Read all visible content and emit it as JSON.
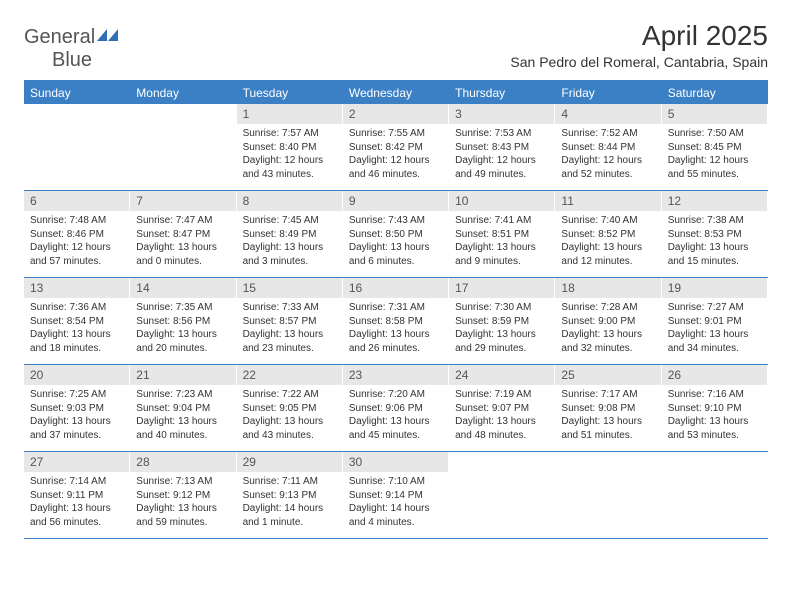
{
  "logo": {
    "text1": "General",
    "text2": "Blue"
  },
  "title": "April 2025",
  "location": "San Pedro del Romeral, Cantabria, Spain",
  "colors": {
    "header_bg": "#3b7fc4",
    "header_text": "#ffffff",
    "daynum_bg": "#e7e7e7",
    "text": "#333333",
    "border": "#3b7fc4"
  },
  "daysOfWeek": [
    "Sunday",
    "Monday",
    "Tuesday",
    "Wednesday",
    "Thursday",
    "Friday",
    "Saturday"
  ],
  "weeks": [
    [
      {
        "empty": true
      },
      {
        "empty": true
      },
      {
        "n": "1",
        "sr": "7:57 AM",
        "ss": "8:40 PM",
        "dl": "12 hours and 43 minutes."
      },
      {
        "n": "2",
        "sr": "7:55 AM",
        "ss": "8:42 PM",
        "dl": "12 hours and 46 minutes."
      },
      {
        "n": "3",
        "sr": "7:53 AM",
        "ss": "8:43 PM",
        "dl": "12 hours and 49 minutes."
      },
      {
        "n": "4",
        "sr": "7:52 AM",
        "ss": "8:44 PM",
        "dl": "12 hours and 52 minutes."
      },
      {
        "n": "5",
        "sr": "7:50 AM",
        "ss": "8:45 PM",
        "dl": "12 hours and 55 minutes."
      }
    ],
    [
      {
        "n": "6",
        "sr": "7:48 AM",
        "ss": "8:46 PM",
        "dl": "12 hours and 57 minutes."
      },
      {
        "n": "7",
        "sr": "7:47 AM",
        "ss": "8:47 PM",
        "dl": "13 hours and 0 minutes."
      },
      {
        "n": "8",
        "sr": "7:45 AM",
        "ss": "8:49 PM",
        "dl": "13 hours and 3 minutes."
      },
      {
        "n": "9",
        "sr": "7:43 AM",
        "ss": "8:50 PM",
        "dl": "13 hours and 6 minutes."
      },
      {
        "n": "10",
        "sr": "7:41 AM",
        "ss": "8:51 PM",
        "dl": "13 hours and 9 minutes."
      },
      {
        "n": "11",
        "sr": "7:40 AM",
        "ss": "8:52 PM",
        "dl": "13 hours and 12 minutes."
      },
      {
        "n": "12",
        "sr": "7:38 AM",
        "ss": "8:53 PM",
        "dl": "13 hours and 15 minutes."
      }
    ],
    [
      {
        "n": "13",
        "sr": "7:36 AM",
        "ss": "8:54 PM",
        "dl": "13 hours and 18 minutes."
      },
      {
        "n": "14",
        "sr": "7:35 AM",
        "ss": "8:56 PM",
        "dl": "13 hours and 20 minutes."
      },
      {
        "n": "15",
        "sr": "7:33 AM",
        "ss": "8:57 PM",
        "dl": "13 hours and 23 minutes."
      },
      {
        "n": "16",
        "sr": "7:31 AM",
        "ss": "8:58 PM",
        "dl": "13 hours and 26 minutes."
      },
      {
        "n": "17",
        "sr": "7:30 AM",
        "ss": "8:59 PM",
        "dl": "13 hours and 29 minutes."
      },
      {
        "n": "18",
        "sr": "7:28 AM",
        "ss": "9:00 PM",
        "dl": "13 hours and 32 minutes."
      },
      {
        "n": "19",
        "sr": "7:27 AM",
        "ss": "9:01 PM",
        "dl": "13 hours and 34 minutes."
      }
    ],
    [
      {
        "n": "20",
        "sr": "7:25 AM",
        "ss": "9:03 PM",
        "dl": "13 hours and 37 minutes."
      },
      {
        "n": "21",
        "sr": "7:23 AM",
        "ss": "9:04 PM",
        "dl": "13 hours and 40 minutes."
      },
      {
        "n": "22",
        "sr": "7:22 AM",
        "ss": "9:05 PM",
        "dl": "13 hours and 43 minutes."
      },
      {
        "n": "23",
        "sr": "7:20 AM",
        "ss": "9:06 PM",
        "dl": "13 hours and 45 minutes."
      },
      {
        "n": "24",
        "sr": "7:19 AM",
        "ss": "9:07 PM",
        "dl": "13 hours and 48 minutes."
      },
      {
        "n": "25",
        "sr": "7:17 AM",
        "ss": "9:08 PM",
        "dl": "13 hours and 51 minutes."
      },
      {
        "n": "26",
        "sr": "7:16 AM",
        "ss": "9:10 PM",
        "dl": "13 hours and 53 minutes."
      }
    ],
    [
      {
        "n": "27",
        "sr": "7:14 AM",
        "ss": "9:11 PM",
        "dl": "13 hours and 56 minutes."
      },
      {
        "n": "28",
        "sr": "7:13 AM",
        "ss": "9:12 PM",
        "dl": "13 hours and 59 minutes."
      },
      {
        "n": "29",
        "sr": "7:11 AM",
        "ss": "9:13 PM",
        "dl": "14 hours and 1 minute."
      },
      {
        "n": "30",
        "sr": "7:10 AM",
        "ss": "9:14 PM",
        "dl": "14 hours and 4 minutes."
      },
      {
        "empty": true
      },
      {
        "empty": true
      },
      {
        "empty": true
      }
    ]
  ],
  "labels": {
    "sunrise": "Sunrise: ",
    "sunset": "Sunset: ",
    "daylight": "Daylight: "
  }
}
